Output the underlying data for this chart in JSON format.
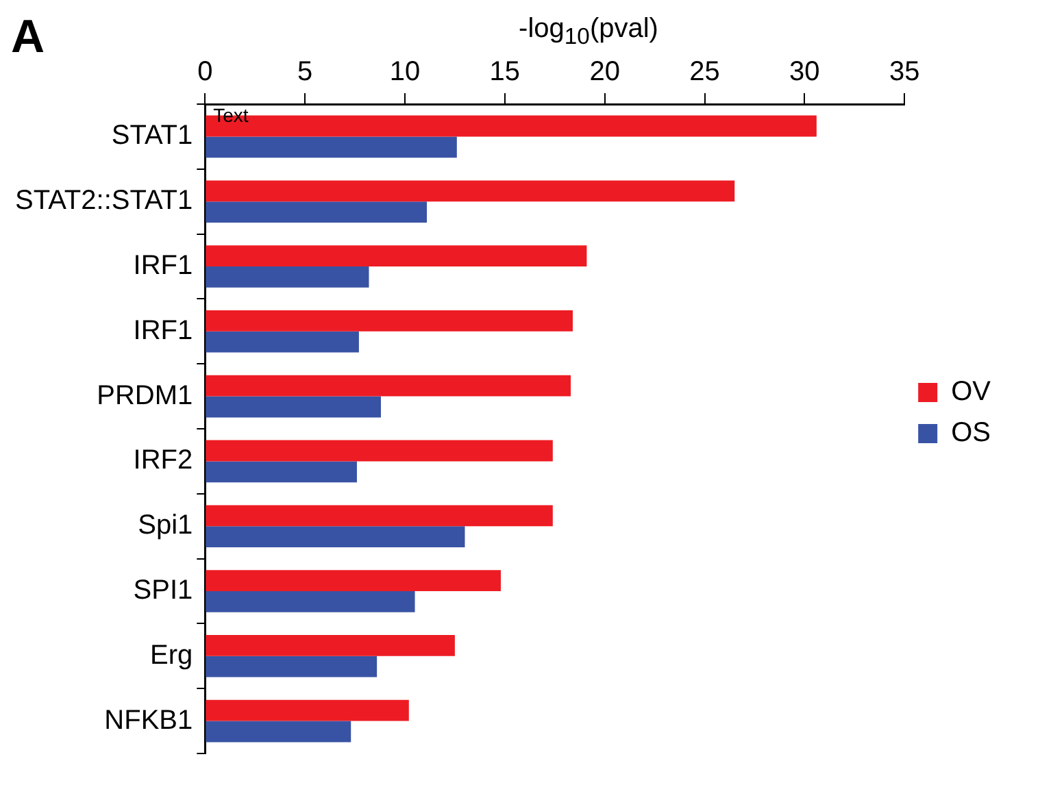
{
  "chart_data": {
    "type": "bar",
    "orientation": "horizontal",
    "xlabel": "-log$_{10}$(pval)",
    "categories": [
      "STAT1",
      "STAT2::STAT1",
      "IRF1",
      "IRF1",
      "PRDM1",
      "IRF2",
      "Spi1",
      "SPI1",
      "Erg",
      "NFKB1"
    ],
    "series": [
      {
        "name": "OV",
        "color": "#ed1c24",
        "values": [
          30.6,
          26.5,
          19.1,
          18.4,
          18.3,
          17.4,
          17.4,
          14.8,
          12.5,
          10.2
        ]
      },
      {
        "name": "OS",
        "color": "#3953a4",
        "values": [
          12.6,
          11.1,
          8.2,
          7.7,
          8.8,
          7.6,
          13.0,
          10.5,
          8.6,
          7.3
        ]
      }
    ],
    "xlim": [
      0,
      35
    ],
    "xticks": [
      0,
      5,
      10,
      15,
      20,
      25,
      30,
      35
    ],
    "grid": false,
    "legend": "right",
    "annotations": [
      "A",
      "Text"
    ]
  }
}
